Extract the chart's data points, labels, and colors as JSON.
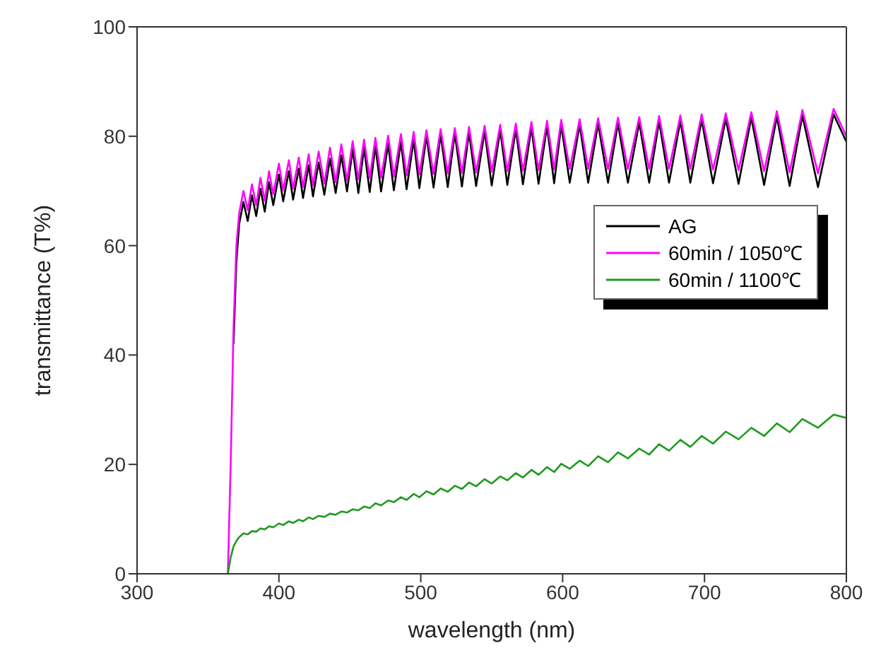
{
  "chart_data": {
    "type": "line",
    "xlabel": "wavelength (nm)",
    "ylabel": "transmittance (T%)",
    "xlim": [
      300,
      800
    ],
    "xticks": [
      300,
      400,
      500,
      600,
      700,
      800
    ],
    "ylim": [
      0,
      100
    ],
    "yticks": [
      0,
      20,
      40,
      60,
      80,
      100
    ],
    "legend": "right",
    "marker": "none",
    "line_style": "solid",
    "x": [
      364,
      366,
      368,
      370,
      372,
      375,
      378,
      381,
      384,
      387,
      390,
      393,
      396,
      400,
      403,
      407,
      410,
      414,
      417,
      421,
      424,
      428,
      432,
      436,
      440,
      444,
      448,
      452,
      456,
      460,
      464,
      468,
      472,
      477,
      481,
      486,
      490,
      495,
      499,
      504,
      509,
      514,
      519,
      524,
      529,
      534,
      539,
      545,
      550,
      556,
      561,
      567,
      572,
      578,
      583,
      589,
      594,
      599,
      605,
      612,
      618,
      625,
      632,
      639,
      646,
      654,
      661,
      668,
      675,
      683,
      690,
      698,
      706,
      715,
      724,
      733,
      742,
      751,
      760,
      769,
      780,
      791,
      800
    ],
    "series": [
      {
        "name": "AG",
        "color": "#000000",
        "values": [
          null,
          null,
          42,
          57,
          64,
          68,
          64.5,
          69.2,
          65.4,
          70.4,
          66.2,
          71.6,
          67.4,
          73,
          68.1,
          73.6,
          68.4,
          74.1,
          68.7,
          74.7,
          69,
          75.2,
          69.3,
          75.9,
          69.6,
          76.5,
          69.9,
          77.6,
          69.6,
          77.9,
          69.8,
          78.2,
          69.9,
          78.6,
          70.1,
          78.9,
          70.3,
          79.3,
          70.5,
          80.1,
          70.6,
          80.3,
          70.7,
          80.5,
          70.8,
          80.7,
          70.9,
          80.9,
          71,
          81.1,
          71.1,
          81.3,
          71.2,
          81.6,
          71.3,
          81.8,
          71.4,
          82,
          71.5,
          82.1,
          71.5,
          82.3,
          71.5,
          82.4,
          71.5,
          82.5,
          71.5,
          82.7,
          71.5,
          82.8,
          71.5,
          83,
          71.4,
          83.2,
          71.3,
          83.4,
          71.1,
          83.6,
          70.9,
          83.8,
          70.7,
          84,
          79
        ]
      },
      {
        "name": "60min / 1050℃",
        "color": "#ff00ff",
        "values": [
          0,
          20,
          45,
          60,
          66,
          70,
          66.5,
          71.2,
          67.4,
          72.4,
          68.2,
          73.6,
          69.4,
          75,
          70.1,
          75.6,
          70.4,
          76.1,
          70.7,
          76.7,
          71,
          77.2,
          71.3,
          77.9,
          71.6,
          78.5,
          71.9,
          79.1,
          72.1,
          79.4,
          72.3,
          79.7,
          72.4,
          80.1,
          72.6,
          80.4,
          72.8,
          80.8,
          73,
          81.1,
          73.1,
          81.3,
          73.2,
          81.5,
          73.3,
          81.7,
          73.4,
          81.9,
          73.5,
          82.1,
          73.6,
          82.3,
          73.7,
          82.6,
          73.8,
          82.8,
          73.9,
          83,
          74,
          83.1,
          74,
          83.3,
          74,
          83.4,
          74,
          83.5,
          74,
          83.7,
          74,
          83.8,
          74,
          84,
          73.9,
          84.2,
          73.8,
          84.4,
          73.6,
          84.6,
          73.4,
          84.8,
          73.2,
          85,
          80
        ]
      },
      {
        "name": "60min / 1100℃",
        "color": "#1f9a1f",
        "values": [
          0,
          3,
          5,
          6,
          6.7,
          7.4,
          7.2,
          7.8,
          7.7,
          8.3,
          8.1,
          8.7,
          8.5,
          9.2,
          8.9,
          9.6,
          9.3,
          9.9,
          9.6,
          10.3,
          10,
          10.6,
          10.4,
          11,
          10.8,
          11.4,
          11.2,
          11.8,
          11.6,
          12.3,
          12,
          12.9,
          12.5,
          13.4,
          13.1,
          14,
          13.5,
          14.6,
          14,
          15.1,
          14.5,
          15.6,
          15,
          16.1,
          15.5,
          16.7,
          16,
          17.3,
          16.5,
          17.8,
          17.1,
          18.4,
          17.6,
          19,
          18.1,
          19.5,
          18.6,
          20.1,
          19.2,
          20.7,
          19.7,
          21.5,
          20.4,
          22.2,
          21.1,
          22.9,
          21.8,
          23.7,
          22.5,
          24.5,
          23.2,
          25.2,
          23.8,
          26,
          24.6,
          26.7,
          25.2,
          27.5,
          25.9,
          28.3,
          26.7,
          29.1,
          28.5
        ]
      }
    ]
  }
}
